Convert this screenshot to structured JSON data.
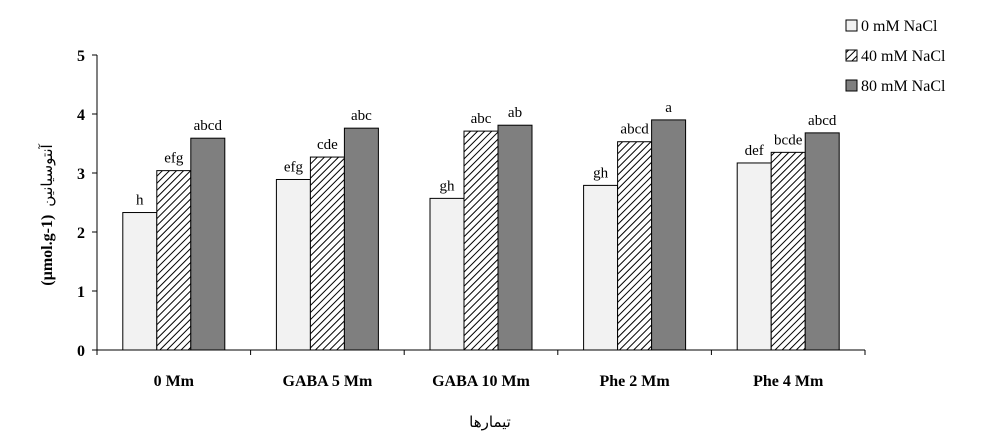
{
  "chart_data": {
    "type": "bar",
    "categories": [
      "0 Mm",
      "GABA 5 Mm",
      "GABA 10 Mm",
      "Phe 2 Mm",
      "Phe 4  Mm"
    ],
    "series": [
      {
        "name": "0 mM NaCl",
        "values": [
          2.33,
          2.89,
          2.57,
          2.79,
          3.17
        ],
        "labels": [
          "h",
          "efg",
          "gh",
          "gh",
          "def"
        ]
      },
      {
        "name": "40 mM NaCl",
        "values": [
          3.04,
          3.27,
          3.71,
          3.53,
          3.35
        ],
        "labels": [
          "efg",
          "cde",
          "abc",
          "abcd",
          "bcde"
        ]
      },
      {
        "name": "80 mM NaCl",
        "values": [
          3.59,
          3.76,
          3.81,
          3.9,
          3.68
        ],
        "labels": [
          "abcd",
          "abc",
          "ab",
          "a",
          "abcd"
        ]
      }
    ],
    "yticks": [
      "0",
      "1",
      "2",
      "3",
      "4",
      "5"
    ],
    "ylim": [
      0,
      5
    ],
    "xlabel": "تیمارها",
    "ylabel": "آنتوسیانین",
    "ylabel_unit": "(µmol.g-1)",
    "legend_position": "top-right",
    "grid": false,
    "colors": {
      "0 mM NaCl": "#f2f2f2",
      "40 mM NaCl": "hatched",
      "80 mM NaCl": "#7f7f7f"
    }
  }
}
